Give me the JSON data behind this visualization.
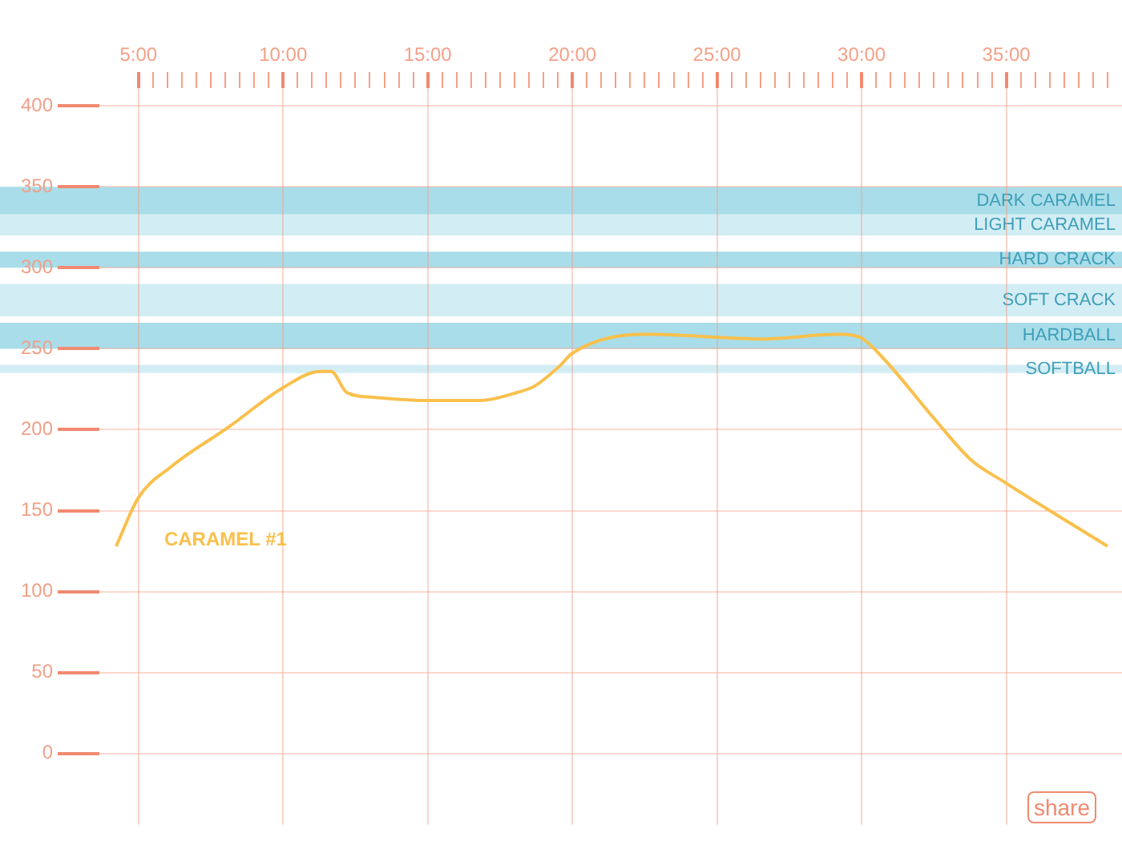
{
  "chart_data": {
    "type": "line",
    "xlim": [
      3.65,
      39
    ],
    "ylim": [
      -44,
      411
    ],
    "xticks": [
      {
        "value": 5,
        "label": "5:00"
      },
      {
        "value": 5.5,
        "label": null
      },
      {
        "value": 6,
        "label": null
      },
      {
        "value": 6.5,
        "label": null
      },
      {
        "value": 7,
        "label": null
      },
      {
        "value": 7.5,
        "label": null
      },
      {
        "value": 8,
        "label": null
      },
      {
        "value": 8.5,
        "label": null
      },
      {
        "value": 9,
        "label": null
      },
      {
        "value": 9.5,
        "label": null
      },
      {
        "value": 10,
        "label": "10:00"
      },
      {
        "value": 10.5,
        "label": null
      },
      {
        "value": 11,
        "label": null
      },
      {
        "value": 11.5,
        "label": null
      },
      {
        "value": 12,
        "label": null
      },
      {
        "value": 12.5,
        "label": null
      },
      {
        "value": 13,
        "label": null
      },
      {
        "value": 13.5,
        "label": null
      },
      {
        "value": 14,
        "label": null
      },
      {
        "value": 14.5,
        "label": null
      },
      {
        "value": 15,
        "label": "15:00"
      },
      {
        "value": 15.5,
        "label": null
      },
      {
        "value": 16,
        "label": null
      },
      {
        "value": 16.5,
        "label": null
      },
      {
        "value": 17,
        "label": null
      },
      {
        "value": 17.5,
        "label": null
      },
      {
        "value": 18,
        "label": null
      },
      {
        "value": 18.5,
        "label": null
      },
      {
        "value": 19,
        "label": null
      },
      {
        "value": 19.5,
        "label": null
      },
      {
        "value": 20,
        "label": "20:00"
      },
      {
        "value": 20.5,
        "label": null
      },
      {
        "value": 21,
        "label": null
      },
      {
        "value": 21.5,
        "label": null
      },
      {
        "value": 22,
        "label": null
      },
      {
        "value": 22.5,
        "label": null
      },
      {
        "value": 23,
        "label": null
      },
      {
        "value": 23.5,
        "label": null
      },
      {
        "value": 24,
        "label": null
      },
      {
        "value": 24.5,
        "label": null
      },
      {
        "value": 25,
        "label": "25:00"
      },
      {
        "value": 25.5,
        "label": null
      },
      {
        "value": 26,
        "label": null
      },
      {
        "value": 26.5,
        "label": null
      },
      {
        "value": 27,
        "label": null
      },
      {
        "value": 27.5,
        "label": null
      },
      {
        "value": 28,
        "label": null
      },
      {
        "value": 28.5,
        "label": null
      },
      {
        "value": 29,
        "label": null
      },
      {
        "value": 29.5,
        "label": null
      },
      {
        "value": 30,
        "label": "30:00"
      },
      {
        "value": 30.5,
        "label": null
      },
      {
        "value": 31,
        "label": null
      },
      {
        "value": 31.5,
        "label": null
      },
      {
        "value": 32,
        "label": null
      },
      {
        "value": 32.5,
        "label": null
      },
      {
        "value": 33,
        "label": null
      },
      {
        "value": 33.5,
        "label": null
      },
      {
        "value": 34,
        "label": null
      },
      {
        "value": 34.5,
        "label": null
      },
      {
        "value": 35,
        "label": "35:00"
      },
      {
        "value": 35.5,
        "label": null
      },
      {
        "value": 36,
        "label": null
      },
      {
        "value": 36.5,
        "label": null
      },
      {
        "value": 37,
        "label": null
      },
      {
        "value": 37.5,
        "label": null
      },
      {
        "value": 38,
        "label": null
      },
      {
        "value": 38.5,
        "label": null
      }
    ],
    "yticks": [
      0,
      50,
      100,
      150,
      200,
      250,
      300,
      350,
      400
    ],
    "grid": true,
    "legend": false,
    "marker": "none",
    "bands": [
      {
        "axis": "y",
        "from": 333,
        "to": 350,
        "label": "DARK CARAMEL",
        "color": "#a9dde9"
      },
      {
        "axis": "y",
        "from": 320,
        "to": 333,
        "label": "LIGHT CARAMEL",
        "color": "#d3edf4"
      },
      {
        "axis": "y",
        "from": 300,
        "to": 310,
        "label": "HARD CRACK",
        "color": "#a9dde9"
      },
      {
        "axis": "y",
        "from": 270,
        "to": 290,
        "label": "SOFT CRACK",
        "color": "#d3edf4"
      },
      {
        "axis": "y",
        "from": 250,
        "to": 266,
        "label": "HARDBALL",
        "color": "#a9dde9"
      },
      {
        "axis": "y",
        "from": 235,
        "to": 240,
        "label": "SOFTBALL",
        "color": "#d3edf4"
      }
    ],
    "annotations": [
      "share"
    ],
    "series": [
      {
        "name": "CARAMEL #1",
        "color": "#f9c04c",
        "x": [
          4.23,
          5.0,
          6.12,
          8.15,
          10,
          11.29,
          11.66,
          12.2,
          13.1,
          15,
          16.8,
          18.1,
          18.7,
          19.6,
          19.98,
          22.56,
          26.6,
          29.2,
          29.95,
          30.7,
          32.5,
          33.8,
          34.9,
          38.5
        ],
        "values": [
          128,
          158,
          177,
          202,
          226,
          236,
          236,
          223,
          220,
          218,
          218,
          223,
          227,
          240,
          247,
          259,
          256,
          259,
          257,
          245,
          207,
          181,
          168,
          128
        ]
      }
    ]
  }
}
